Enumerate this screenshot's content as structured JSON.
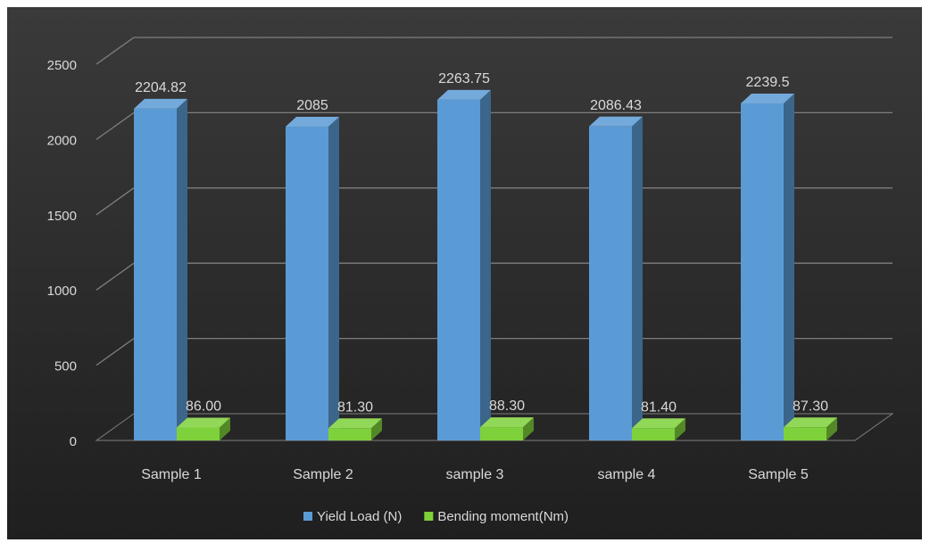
{
  "chart_data": {
    "type": "bar",
    "categories": [
      "Sample 1",
      "Sample 2",
      "sample 3",
      "sample 4",
      "Sample 5"
    ],
    "series": [
      {
        "name": "Yield Load (N)",
        "values": [
          2204.82,
          2085,
          2263.75,
          2086.43,
          2239.5
        ],
        "labels": [
          "2204.82",
          "2085",
          "2263.75",
          "2086.43",
          "2239.5"
        ],
        "color": "#5b9bd5"
      },
      {
        "name": "Bending moment(Nm)",
        "values": [
          86.0,
          81.3,
          88.3,
          81.4,
          87.3
        ],
        "labels": [
          "86.00",
          "81.30",
          "88.30",
          "81.40",
          "87.30"
        ],
        "color": "#7fd13b"
      }
    ],
    "y_ticks": [
      "0",
      "500",
      "1000",
      "1500",
      "2000",
      "2500"
    ],
    "ylim": [
      0,
      2500
    ],
    "grid": true,
    "legend": "bottom",
    "style": "3d-column",
    "background_color": "#2e2e2e",
    "text_color": "#d9d9d9",
    "gridline_color": "#7f7f7f"
  }
}
